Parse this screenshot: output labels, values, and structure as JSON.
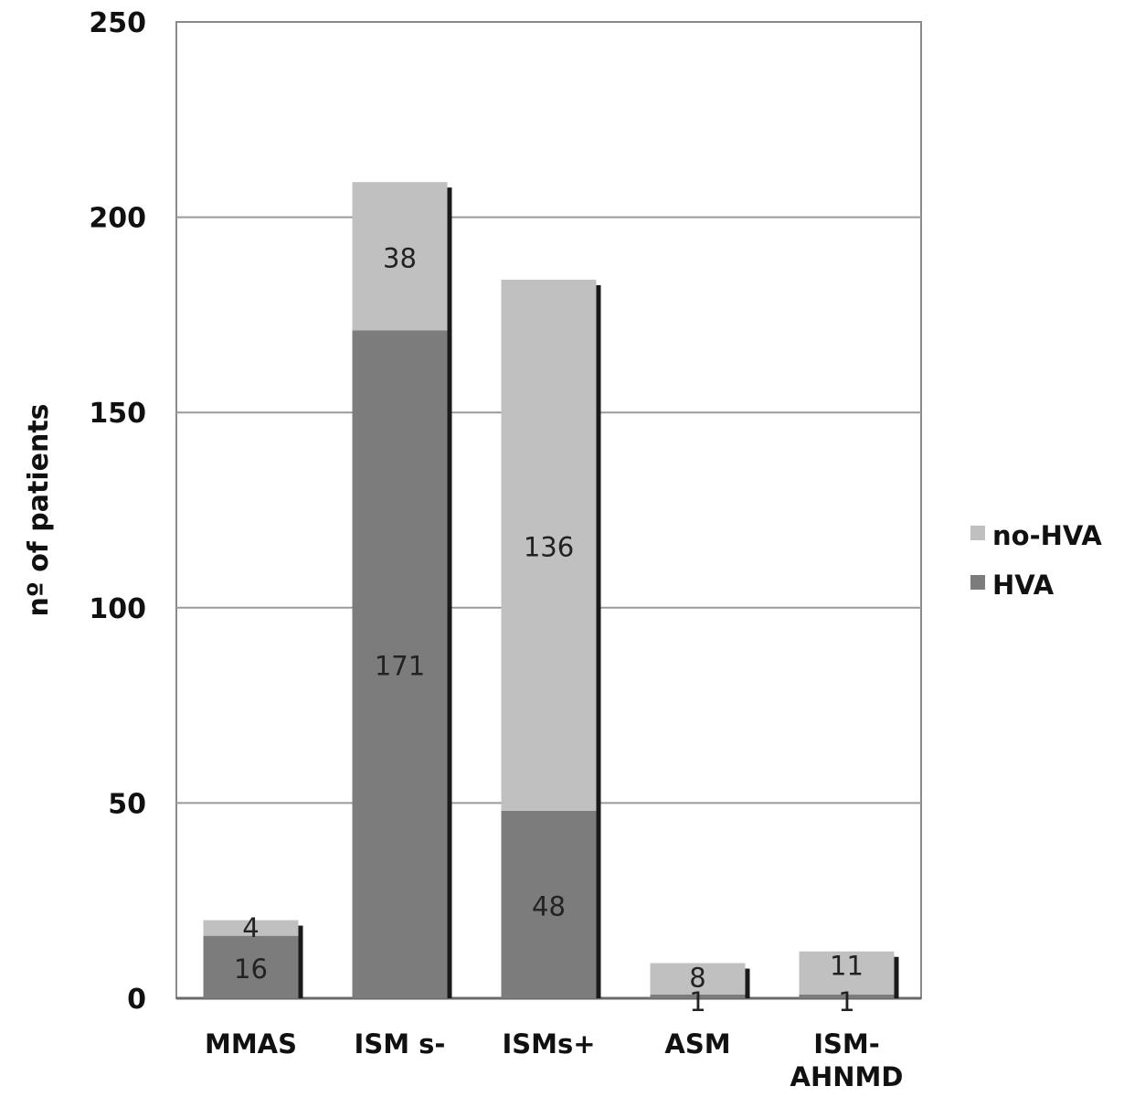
{
  "chart_data": {
    "type": "bar",
    "stacked": true,
    "title": "",
    "xlabel": "",
    "ylabel": "nº of patients",
    "ylim": [
      0,
      250
    ],
    "yticks": [
      0,
      50,
      100,
      150,
      200,
      250
    ],
    "grid": true,
    "legend_position": "right",
    "categories": [
      "MMAS",
      "ISM s-",
      "ISMs+",
      "ASM",
      "ISM-AHNMD"
    ],
    "series": [
      {
        "name": "HVA",
        "color": "#7c7c7c",
        "values": [
          16,
          171,
          48,
          1,
          1
        ]
      },
      {
        "name": "no-HVA",
        "color": "#c0c0c0",
        "values": [
          4,
          38,
          136,
          8,
          11
        ]
      }
    ],
    "legend_order": [
      "no-HVA",
      "HVA"
    ]
  }
}
